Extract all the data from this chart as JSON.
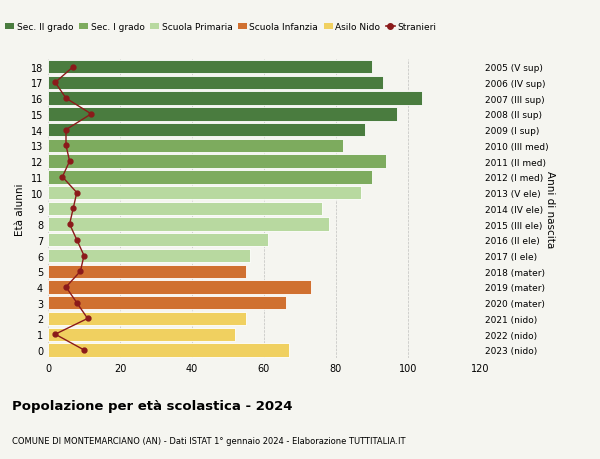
{
  "ages": [
    18,
    17,
    16,
    15,
    14,
    13,
    12,
    11,
    10,
    9,
    8,
    7,
    6,
    5,
    4,
    3,
    2,
    1,
    0
  ],
  "right_labels": [
    "2005 (V sup)",
    "2006 (IV sup)",
    "2007 (III sup)",
    "2008 (II sup)",
    "2009 (I sup)",
    "2010 (III med)",
    "2011 (II med)",
    "2012 (I med)",
    "2013 (V ele)",
    "2014 (IV ele)",
    "2015 (III ele)",
    "2016 (II ele)",
    "2017 (I ele)",
    "2018 (mater)",
    "2019 (mater)",
    "2020 (mater)",
    "2021 (nido)",
    "2022 (nido)",
    "2023 (nido)"
  ],
  "bar_values": [
    90,
    93,
    104,
    97,
    88,
    82,
    94,
    90,
    87,
    76,
    78,
    61,
    56,
    55,
    73,
    66,
    55,
    52,
    67
  ],
  "bar_colors": [
    "#4a7c3f",
    "#4a7c3f",
    "#4a7c3f",
    "#4a7c3f",
    "#4a7c3f",
    "#7dab5e",
    "#7dab5e",
    "#7dab5e",
    "#b8d9a0",
    "#b8d9a0",
    "#b8d9a0",
    "#b8d9a0",
    "#b8d9a0",
    "#d07030",
    "#d07030",
    "#d07030",
    "#f0d060",
    "#f0d060",
    "#f0d060"
  ],
  "stranieri_values": [
    7,
    2,
    5,
    12,
    5,
    5,
    6,
    4,
    8,
    7,
    6,
    8,
    10,
    9,
    5,
    8,
    11,
    2,
    10
  ],
  "stranieri_color": "#8b1a1a",
  "title": "Popolazione per età scolastica - 2024",
  "subtitle": "COMUNE DI MONTEMARCIANO (AN) - Dati ISTAT 1° gennaio 2024 - Elaborazione TUTTITALIA.IT",
  "ylabel": "Età alunni",
  "right_ylabel": "Anni di nascita",
  "xlim": [
    0,
    120
  ],
  "background_color": "#f5f5f0",
  "legend_labels": [
    "Sec. II grado",
    "Sec. I grado",
    "Scuola Primaria",
    "Scuola Infanzia",
    "Asilo Nido",
    "Stranieri"
  ],
  "legend_colors": [
    "#4a7c3f",
    "#7dab5e",
    "#b8d9a0",
    "#d07030",
    "#f0d060",
    "#8b1a1a"
  ]
}
